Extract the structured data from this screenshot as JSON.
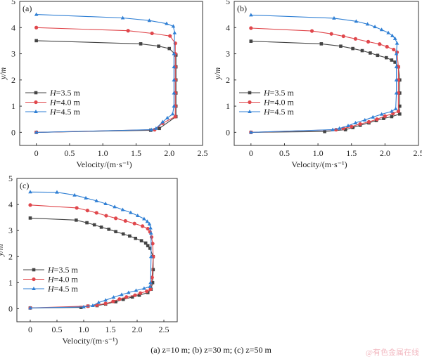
{
  "figure": {
    "caption": "(a) z=10 m; (b) z=30 m; (c) z=50 m",
    "watermark": "@有色金属在线"
  },
  "colors": {
    "H=3.5 m": "#444444",
    "H=4.0 m": "#e0474c",
    "H=4.5 m": "#2f7fd4"
  },
  "chart_data": [
    {
      "type": "line",
      "panel_label": "(a)",
      "xlabel": "Velocity/(m·s⁻¹)",
      "ylabel": "y/m",
      "xlim": [
        -0.25,
        2.5
      ],
      "ylim": [
        -0.5,
        5
      ],
      "xticks": [
        "0",
        "0.5",
        "1.0",
        "1.5",
        "2.0",
        "2.5"
      ],
      "xtick_values": [
        0,
        0.5,
        1.0,
        1.5,
        2.0,
        2.5
      ],
      "yticks": [
        "0",
        "1",
        "2",
        "3",
        "4",
        "5"
      ],
      "ytick_values": [
        0,
        1,
        2,
        3,
        4,
        5
      ],
      "legend_placement": "center-left",
      "series": [
        {
          "name": "H=3.5 m",
          "marker": "square",
          "points": [
            [
              0,
              3.5
            ],
            [
              1.57,
              3.38
            ],
            [
              1.84,
              3.29
            ],
            [
              2.0,
              3.2
            ],
            [
              2.1,
              2.95
            ],
            [
              2.1,
              2.5
            ],
            [
              2.1,
              2.0
            ],
            [
              2.1,
              1.5
            ],
            [
              2.1,
              1.0
            ],
            [
              2.1,
              0.6
            ],
            [
              1.85,
              0.15
            ],
            [
              1.72,
              0.08
            ],
            [
              0,
              0
            ]
          ]
        },
        {
          "name": "H=4.0 m",
          "marker": "circle",
          "points": [
            [
              0,
              4.0
            ],
            [
              1.38,
              3.88
            ],
            [
              1.74,
              3.78
            ],
            [
              2.01,
              3.68
            ],
            [
              2.09,
              3.4
            ],
            [
              2.09,
              3.0
            ],
            [
              2.09,
              2.5
            ],
            [
              2.09,
              2.0
            ],
            [
              2.09,
              1.5
            ],
            [
              2.09,
              1.0
            ],
            [
              2.09,
              0.6
            ],
            [
              1.9,
              0.35
            ],
            [
              1.78,
              0.1
            ],
            [
              0,
              0
            ]
          ]
        },
        {
          "name": "H=4.5 m",
          "marker": "triangle",
          "points": [
            [
              0,
              4.5
            ],
            [
              1.3,
              4.37
            ],
            [
              1.7,
              4.27
            ],
            [
              1.96,
              4.15
            ],
            [
              2.06,
              4.05
            ],
            [
              2.08,
              3.8
            ],
            [
              2.07,
              3.0
            ],
            [
              2.07,
              2.5
            ],
            [
              2.07,
              2.0
            ],
            [
              2.07,
              1.5
            ],
            [
              2.07,
              1.0
            ],
            [
              2.05,
              0.7
            ],
            [
              1.97,
              0.55
            ],
            [
              1.9,
              0.4
            ],
            [
              1.8,
              0.15
            ],
            [
              1.73,
              0.1
            ],
            [
              0,
              0
            ]
          ]
        }
      ]
    },
    {
      "type": "line",
      "panel_label": "(b)",
      "xlabel": "Velocity/(m·s⁻¹)",
      "ylabel": "y/m",
      "xlim": [
        -0.25,
        2.5
      ],
      "ylim": [
        -0.5,
        5
      ],
      "xticks": [
        "0",
        "0.5",
        "1.0",
        "1.5",
        "2.0",
        "2.5"
      ],
      "xtick_values": [
        0,
        0.5,
        1.0,
        1.5,
        2.0,
        2.5
      ],
      "yticks": [
        "0",
        "1",
        "2",
        "3",
        "4",
        "5"
      ],
      "ytick_values": [
        0,
        1,
        2,
        3,
        4,
        5
      ],
      "legend_placement": "center-left",
      "series": [
        {
          "name": "H=3.5 m",
          "marker": "square",
          "points": [
            [
              0,
              3.48
            ],
            [
              1.05,
              3.38
            ],
            [
              1.34,
              3.29
            ],
            [
              1.52,
              3.2
            ],
            [
              1.66,
              3.12
            ],
            [
              1.78,
              3.03
            ],
            [
              1.89,
              2.94
            ],
            [
              2.02,
              2.85
            ],
            [
              2.1,
              2.76
            ],
            [
              2.15,
              2.68
            ],
            [
              2.2,
              2.5
            ],
            [
              2.22,
              2.0
            ],
            [
              2.22,
              1.5
            ],
            [
              2.22,
              1.0
            ],
            [
              2.22,
              0.7
            ],
            [
              2.1,
              0.6
            ],
            [
              1.98,
              0.53
            ],
            [
              1.87,
              0.45
            ],
            [
              1.76,
              0.36
            ],
            [
              1.63,
              0.27
            ],
            [
              1.52,
              0.18
            ],
            [
              1.41,
              0.1
            ],
            [
              1.1,
              0.03
            ],
            [
              0,
              0
            ]
          ]
        },
        {
          "name": "H=4.0 m",
          "marker": "circle",
          "points": [
            [
              0,
              3.98
            ],
            [
              0.91,
              3.87
            ],
            [
              1.2,
              3.76
            ],
            [
              1.38,
              3.67
            ],
            [
              1.56,
              3.57
            ],
            [
              1.75,
              3.46
            ],
            [
              1.92,
              3.37
            ],
            [
              2.03,
              3.27
            ],
            [
              2.13,
              3.16
            ],
            [
              2.18,
              3.06
            ],
            [
              2.2,
              2.5
            ],
            [
              2.2,
              2.0
            ],
            [
              2.2,
              1.5
            ],
            [
              2.2,
              0.8
            ],
            [
              2.12,
              0.72
            ],
            [
              2.0,
              0.62
            ],
            [
              1.88,
              0.5
            ],
            [
              1.76,
              0.4
            ],
            [
              1.63,
              0.32
            ],
            [
              1.5,
              0.22
            ],
            [
              1.38,
              0.15
            ],
            [
              1.27,
              0.1
            ],
            [
              0,
              0
            ]
          ]
        },
        {
          "name": "H=4.5 m",
          "marker": "triangle",
          "points": [
            [
              0,
              4.48
            ],
            [
              1.24,
              4.36
            ],
            [
              1.57,
              4.24
            ],
            [
              1.74,
              4.13
            ],
            [
              1.85,
              4.03
            ],
            [
              1.95,
              3.92
            ],
            [
              2.05,
              3.8
            ],
            [
              2.11,
              3.69
            ],
            [
              2.15,
              3.58
            ],
            [
              2.18,
              3.4
            ],
            [
              2.17,
              3.0
            ],
            [
              2.17,
              2.5
            ],
            [
              2.17,
              2.0
            ],
            [
              2.17,
              1.5
            ],
            [
              2.16,
              0.9
            ],
            [
              2.1,
              0.8
            ],
            [
              1.95,
              0.69
            ],
            [
              1.82,
              0.58
            ],
            [
              1.7,
              0.47
            ],
            [
              1.56,
              0.36
            ],
            [
              1.45,
              0.25
            ],
            [
              1.32,
              0.15
            ],
            [
              1.22,
              0.1
            ],
            [
              0,
              0
            ]
          ]
        }
      ]
    },
    {
      "type": "line",
      "panel_label": "(c)",
      "xlabel": "Velocity/(m·s⁻¹)",
      "ylabel": "y/m",
      "xlim": [
        -0.25,
        2.75
      ],
      "ylim": [
        -0.5,
        5
      ],
      "xticks": [
        "0",
        "0.5",
        "1.0",
        "1.5",
        "2.0",
        "2.5"
      ],
      "xtick_values": [
        0,
        0.5,
        1.0,
        1.5,
        2.0,
        2.5
      ],
      "yticks": [
        "0",
        "1",
        "2",
        "3",
        "4",
        "5"
      ],
      "ytick_values": [
        0,
        1,
        2,
        3,
        4,
        5
      ],
      "legend_placement": "center-left",
      "series": [
        {
          "name": "H=3.5 m",
          "marker": "square",
          "points": [
            [
              0,
              3.48
            ],
            [
              0.86,
              3.4
            ],
            [
              1.06,
              3.3
            ],
            [
              1.2,
              3.22
            ],
            [
              1.33,
              3.13
            ],
            [
              1.47,
              3.05
            ],
            [
              1.6,
              2.96
            ],
            [
              1.74,
              2.87
            ],
            [
              1.86,
              2.79
            ],
            [
              1.97,
              2.7
            ],
            [
              2.08,
              2.61
            ],
            [
              2.16,
              2.52
            ],
            [
              2.2,
              2.42
            ],
            [
              2.24,
              2.32
            ],
            [
              2.3,
              2.0
            ],
            [
              2.3,
              1.5
            ],
            [
              2.29,
              1.0
            ],
            [
              2.26,
              0.75
            ],
            [
              2.2,
              0.62
            ],
            [
              2.04,
              0.52
            ],
            [
              1.91,
              0.45
            ],
            [
              1.74,
              0.36
            ],
            [
              1.6,
              0.27
            ],
            [
              1.41,
              0.18
            ],
            [
              1.25,
              0.12
            ],
            [
              1.08,
              0.1
            ],
            [
              0.95,
              0.05
            ],
            [
              0,
              0.03
            ]
          ]
        },
        {
          "name": "H=4.0 m",
          "marker": "circle",
          "points": [
            [
              0,
              3.98
            ],
            [
              0.87,
              3.87
            ],
            [
              1.07,
              3.77
            ],
            [
              1.24,
              3.68
            ],
            [
              1.42,
              3.57
            ],
            [
              1.6,
              3.47
            ],
            [
              1.78,
              3.37
            ],
            [
              1.95,
              3.27
            ],
            [
              2.1,
              3.17
            ],
            [
              2.2,
              3.07
            ],
            [
              2.24,
              2.95
            ],
            [
              2.27,
              2.75
            ],
            [
              2.29,
              2.5
            ],
            [
              2.3,
              2.0
            ],
            [
              2.28,
              1.2
            ],
            [
              2.25,
              0.75
            ],
            [
              2.18,
              0.67
            ],
            [
              2.06,
              0.6
            ],
            [
              1.96,
              0.52
            ],
            [
              1.8,
              0.45
            ],
            [
              1.67,
              0.37
            ],
            [
              1.55,
              0.28
            ],
            [
              1.41,
              0.2
            ],
            [
              1.25,
              0.14
            ],
            [
              1.08,
              0.1
            ],
            [
              0,
              0.03
            ]
          ]
        },
        {
          "name": "H=4.5 m",
          "marker": "triangle",
          "points": [
            [
              0,
              4.48
            ],
            [
              0.5,
              4.47
            ],
            [
              0.83,
              4.36
            ],
            [
              1.04,
              4.25
            ],
            [
              1.24,
              4.14
            ],
            [
              1.41,
              4.03
            ],
            [
              1.58,
              3.91
            ],
            [
              1.73,
              3.8
            ],
            [
              1.88,
              3.69
            ],
            [
              2.01,
              3.57
            ],
            [
              2.13,
              3.45
            ],
            [
              2.19,
              3.35
            ],
            [
              2.23,
              3.25
            ],
            [
              2.25,
              3.1
            ],
            [
              2.26,
              2.9
            ],
            [
              2.26,
              2.0
            ],
            [
              2.25,
              1.0
            ],
            [
              2.24,
              0.85
            ],
            [
              2.13,
              0.78
            ],
            [
              1.98,
              0.7
            ],
            [
              1.84,
              0.62
            ],
            [
              1.71,
              0.54
            ],
            [
              1.56,
              0.44
            ],
            [
              1.41,
              0.33
            ],
            [
              1.28,
              0.24
            ],
            [
              1.17,
              0.12
            ],
            [
              1.0,
              0.07
            ],
            [
              0,
              0.03
            ]
          ]
        }
      ]
    }
  ]
}
